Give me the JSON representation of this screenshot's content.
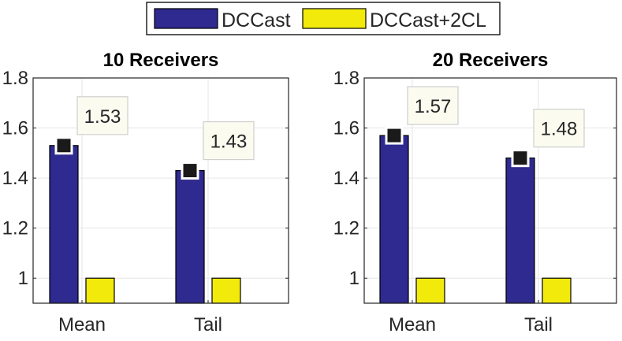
{
  "legend": {
    "entries": [
      {
        "label": "DCCast",
        "color": "#2E2A8F"
      },
      {
        "label": "DCCast+2CL",
        "color": "#F2EA0B"
      }
    ]
  },
  "chart_data": [
    {
      "type": "bar",
      "title": "10 Receivers",
      "categories": [
        "Mean",
        "Tail"
      ],
      "series": [
        {
          "name": "DCCast",
          "values": [
            1.53,
            1.43
          ],
          "color": "#2E2A8F"
        },
        {
          "name": "DCCast+2CL",
          "values": [
            1.0,
            1.0
          ],
          "color": "#F2EA0B"
        }
      ],
      "ylim": [
        0.9,
        1.8
      ],
      "yticks": [
        1,
        1.2,
        1.4,
        1.6,
        1.8
      ],
      "ytick_labels": [
        "1",
        "1.2",
        "1.4",
        "1.6",
        "1.8"
      ],
      "grid": true,
      "annotations": [
        {
          "category": "Mean",
          "series": "DCCast",
          "value": 1.53,
          "text": "1.53"
        },
        {
          "category": "Tail",
          "series": "DCCast",
          "value": 1.43,
          "text": "1.43"
        }
      ]
    },
    {
      "type": "bar",
      "title": "20 Receivers",
      "categories": [
        "Mean",
        "Tail"
      ],
      "series": [
        {
          "name": "DCCast",
          "values": [
            1.57,
            1.48
          ],
          "color": "#2E2A8F"
        },
        {
          "name": "DCCast+2CL",
          "values": [
            1.0,
            1.0
          ],
          "color": "#F2EA0B"
        }
      ],
      "ylim": [
        0.9,
        1.8
      ],
      "yticks": [
        1,
        1.2,
        1.4,
        1.6,
        1.8
      ],
      "ytick_labels": [
        "1",
        "1.2",
        "1.4",
        "1.6",
        "1.8"
      ],
      "grid": true,
      "annotations": [
        {
          "category": "Mean",
          "series": "DCCast",
          "value": 1.57,
          "text": "1.57"
        },
        {
          "category": "Tail",
          "series": "DCCast",
          "value": 1.48,
          "text": "1.48"
        }
      ]
    }
  ]
}
